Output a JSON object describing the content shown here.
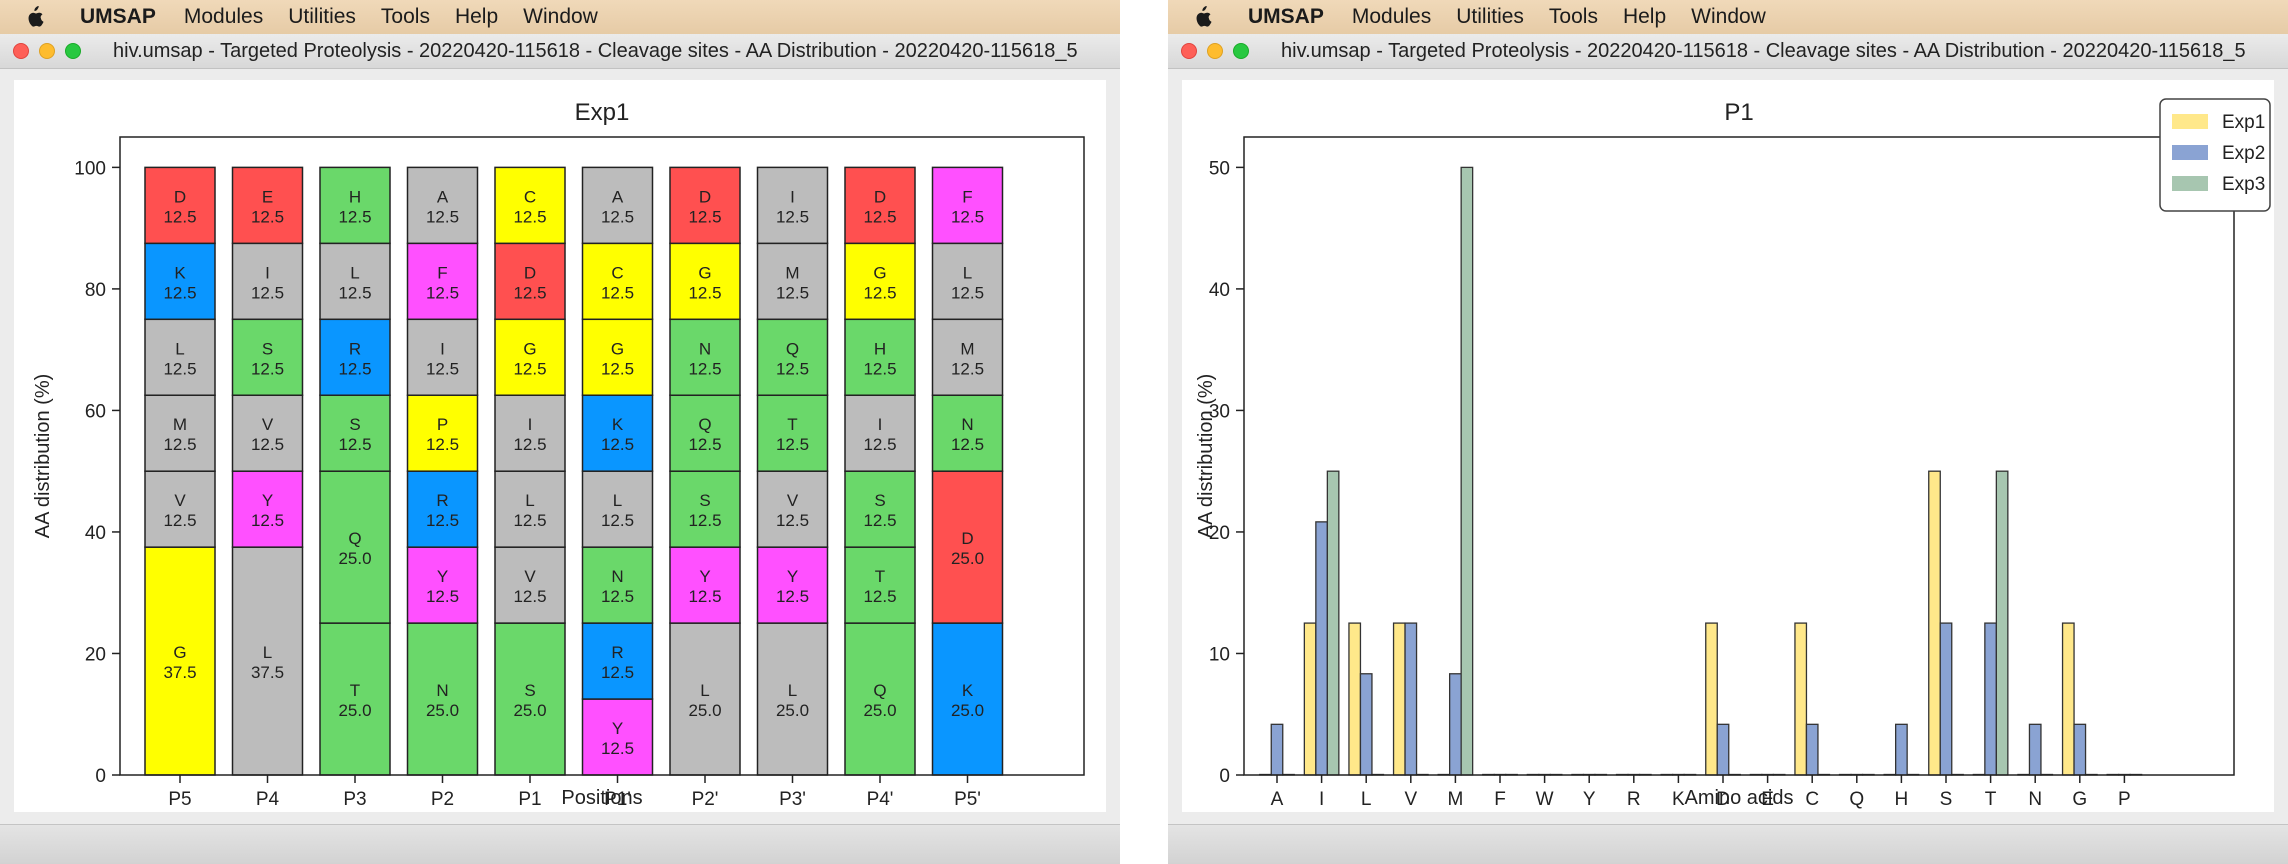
{
  "menubar": {
    "app_name": "UMSAP",
    "items": [
      "Modules",
      "Utilities",
      "Tools",
      "Help",
      "Window"
    ]
  },
  "windows": [
    {
      "title": "hiv.umsap - Targeted Proteolysis - 20220420-115618 - Cleavage sites - AA Distribution - 20220420-115618_5",
      "chart_data": {
        "type": "bar",
        "stacked": true,
        "title": "Exp1",
        "xlabel": "Positions",
        "ylabel": "AA distribution (%)",
        "ylim": [
          0,
          100
        ],
        "yticks": [
          0,
          20,
          40,
          60,
          80,
          100
        ],
        "categories": [
          "P5",
          "P4",
          "P3",
          "P2",
          "P1",
          "P1'",
          "P2'",
          "P3'",
          "P4'",
          "P5'"
        ],
        "aa_colors": {
          "D": "#ff5050",
          "E": "#ff5050",
          "K": "#0a96ff",
          "R": "#0a96ff",
          "H": "#6ad86a",
          "S": "#6ad86a",
          "T": "#6ad86a",
          "Q": "#6ad86a",
          "N": "#6ad86a",
          "C": "#ffff00",
          "G": "#ffff00",
          "P": "#ffff00",
          "F": "#ff50ff",
          "Y": "#ff50ff",
          "W": "#ff50ff",
          "A": "#bcbcbc",
          "I": "#bcbcbc",
          "L": "#bcbcbc",
          "M": "#bcbcbc",
          "V": "#bcbcbc"
        },
        "stacks": [
          [
            {
              "aa": "G",
              "value": 37.5,
              "label": "37.5"
            },
            {
              "aa": "V",
              "value": 12.5,
              "label": "12.5"
            },
            {
              "aa": "M",
              "value": 12.5,
              "label": "12.5"
            },
            {
              "aa": "L",
              "value": 12.5,
              "label": "12.5"
            },
            {
              "aa": "K",
              "value": 12.5,
              "label": "12.5"
            },
            {
              "aa": "D",
              "value": 12.5,
              "label": "12.5"
            }
          ],
          [
            {
              "aa": "L",
              "value": 37.5,
              "label": "37.5"
            },
            {
              "aa": "Y",
              "value": 12.5,
              "label": "12.5"
            },
            {
              "aa": "V",
              "value": 12.5,
              "label": "12.5"
            },
            {
              "aa": "S",
              "value": 12.5,
              "label": "12.5"
            },
            {
              "aa": "I",
              "value": 12.5,
              "label": "12.5"
            },
            {
              "aa": "E",
              "value": 12.5,
              "label": "12.5"
            }
          ],
          [
            {
              "aa": "T",
              "value": 25.0,
              "label": "25.0"
            },
            {
              "aa": "Q",
              "value": 25.0,
              "label": "25.0"
            },
            {
              "aa": "S",
              "value": 12.5,
              "label": "12.5"
            },
            {
              "aa": "R",
              "value": 12.5,
              "label": "12.5"
            },
            {
              "aa": "L",
              "value": 12.5,
              "label": "12.5"
            },
            {
              "aa": "H",
              "value": 12.5,
              "label": "12.5"
            }
          ],
          [
            {
              "aa": "N",
              "value": 25.0,
              "label": "25.0"
            },
            {
              "aa": "Y",
              "value": 12.5,
              "label": "12.5"
            },
            {
              "aa": "R",
              "value": 12.5,
              "label": "12.5"
            },
            {
              "aa": "P",
              "value": 12.5,
              "label": "12.5"
            },
            {
              "aa": "I",
              "value": 12.5,
              "label": "12.5"
            },
            {
              "aa": "F",
              "value": 12.5,
              "label": "12.5"
            },
            {
              "aa": "A",
              "value": 12.5,
              "label": "12.5"
            }
          ],
          [
            {
              "aa": "S",
              "value": 25.0,
              "label": "25.0"
            },
            {
              "aa": "V",
              "value": 12.5,
              "label": "12.5"
            },
            {
              "aa": "L",
              "value": 12.5,
              "label": "12.5"
            },
            {
              "aa": "I",
              "value": 12.5,
              "label": "12.5"
            },
            {
              "aa": "G",
              "value": 12.5,
              "label": "12.5"
            },
            {
              "aa": "D",
              "value": 12.5,
              "label": "12.5"
            },
            {
              "aa": "C",
              "value": 12.5,
              "label": "12.5"
            }
          ],
          [
            {
              "aa": "Y",
              "value": 12.5,
              "label": "12.5"
            },
            {
              "aa": "R",
              "value": 12.5,
              "label": "12.5"
            },
            {
              "aa": "N",
              "value": 12.5,
              "label": "12.5"
            },
            {
              "aa": "L",
              "value": 12.5,
              "label": "12.5"
            },
            {
              "aa": "K",
              "value": 12.5,
              "label": "12.5"
            },
            {
              "aa": "G",
              "value": 12.5,
              "label": "12.5"
            },
            {
              "aa": "C",
              "value": 12.5,
              "label": "12.5"
            },
            {
              "aa": "A",
              "value": 12.5,
              "label": "12.5"
            }
          ],
          [
            {
              "aa": "L",
              "value": 25.0,
              "label": "25.0"
            },
            {
              "aa": "Y",
              "value": 12.5,
              "label": "12.5"
            },
            {
              "aa": "S",
              "value": 12.5,
              "label": "12.5"
            },
            {
              "aa": "Q",
              "value": 12.5,
              "label": "12.5"
            },
            {
              "aa": "N",
              "value": 12.5,
              "label": "12.5"
            },
            {
              "aa": "G",
              "value": 12.5,
              "label": "12.5"
            },
            {
              "aa": "D",
              "value": 12.5,
              "label": "12.5"
            }
          ],
          [
            {
              "aa": "L",
              "value": 25.0,
              "label": "25.0"
            },
            {
              "aa": "Y",
              "value": 12.5,
              "label": "12.5"
            },
            {
              "aa": "V",
              "value": 12.5,
              "label": "12.5"
            },
            {
              "aa": "T",
              "value": 12.5,
              "label": "12.5"
            },
            {
              "aa": "Q",
              "value": 12.5,
              "label": "12.5"
            },
            {
              "aa": "M",
              "value": 12.5,
              "label": "12.5"
            },
            {
              "aa": "I",
              "value": 12.5,
              "label": "12.5"
            }
          ],
          [
            {
              "aa": "Q",
              "value": 25.0,
              "label": "25.0"
            },
            {
              "aa": "T",
              "value": 12.5,
              "label": "12.5"
            },
            {
              "aa": "S",
              "value": 12.5,
              "label": "12.5"
            },
            {
              "aa": "I",
              "value": 12.5,
              "label": "12.5"
            },
            {
              "aa": "H",
              "value": 12.5,
              "label": "12.5"
            },
            {
              "aa": "G",
              "value": 12.5,
              "label": "12.5"
            },
            {
              "aa": "D",
              "value": 12.5,
              "label": "12.5"
            }
          ],
          [
            {
              "aa": "K",
              "value": 25.0,
              "label": "25.0"
            },
            {
              "aa": "D",
              "value": 25.0,
              "label": "25.0"
            },
            {
              "aa": "N",
              "value": 12.5,
              "label": "12.5"
            },
            {
              "aa": "M",
              "value": 12.5,
              "label": "12.5"
            },
            {
              "aa": "L",
              "value": 12.5,
              "label": "12.5"
            },
            {
              "aa": "F",
              "value": 12.5,
              "label": "12.5"
            }
          ]
        ]
      }
    },
    {
      "title": "hiv.umsap - Targeted Proteolysis - 20220420-115618 - Cleavage sites - AA Distribution - 20220420-115618_5",
      "chart_data": {
        "type": "bar",
        "grouped": true,
        "title": "P1",
        "xlabel": "Amino acids",
        "ylabel": "AA distribution (%)",
        "ylim": [
          0,
          52.5
        ],
        "yticks": [
          0,
          10,
          20,
          30,
          40,
          50
        ],
        "legend_position": "top-right",
        "categories": [
          "A",
          "I",
          "L",
          "V",
          "M",
          "F",
          "W",
          "Y",
          "R",
          "K",
          "D",
          "E",
          "C",
          "Q",
          "H",
          "S",
          "T",
          "N",
          "G",
          "P"
        ],
        "series": [
          {
            "name": "Exp1",
            "color": "#ffe88a",
            "values": [
              0,
              12.5,
              12.5,
              12.5,
              0,
              0,
              0,
              0,
              0,
              0,
              12.5,
              0,
              12.5,
              0,
              0,
              25,
              0,
              0,
              12.5,
              0
            ]
          },
          {
            "name": "Exp2",
            "color": "#8aa3d3",
            "values": [
              4.17,
              20.83,
              8.33,
              12.5,
              8.33,
              0,
              0,
              0,
              0,
              0,
              4.17,
              0,
              4.17,
              0,
              4.17,
              12.5,
              12.5,
              4.17,
              4.17,
              0
            ]
          },
          {
            "name": "Exp3",
            "color": "#a7c6b0",
            "values": [
              0,
              25,
              0,
              0,
              50,
              0,
              0,
              0,
              0,
              0,
              0,
              0,
              0,
              0,
              0,
              0,
              25,
              0,
              0,
              0
            ]
          }
        ]
      }
    }
  ]
}
